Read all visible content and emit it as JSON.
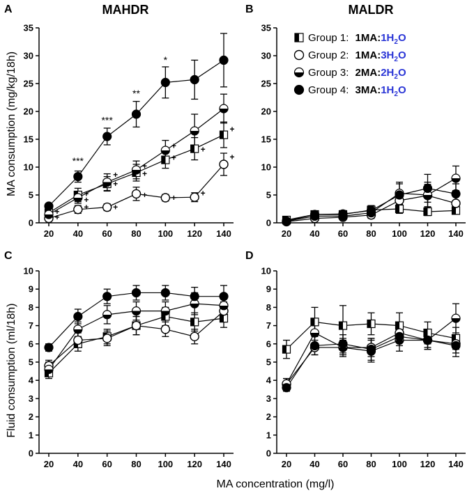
{
  "figure": {
    "shared_xlabel": "MA concentration (mg/l)"
  },
  "legend": {
    "items": [
      {
        "group": "Group 1:",
        "ratio_left": "1MA:",
        "ratio_right": "1H",
        "sub": "2",
        "o": "O",
        "marker": "square-half"
      },
      {
        "group": "Group 2:",
        "ratio_left": "1MA:",
        "ratio_right": "3H",
        "sub": "2",
        "o": "O",
        "marker": "circle-open"
      },
      {
        "group": "Group 3:",
        "ratio_left": "2MA:",
        "ratio_right": "2H",
        "sub": "2",
        "o": "O",
        "marker": "circle-half"
      },
      {
        "group": "Group 4:",
        "ratio_left": "3MA:",
        "ratio_right": "1H",
        "sub": "2",
        "o": "O",
        "marker": "circle-filled"
      }
    ],
    "ratio_color": "#2a35d6"
  },
  "chart_data": [
    {
      "panel": "A",
      "type": "line",
      "title": "MAHDR",
      "ylabel": "MA consumption (mg/kg/18h)",
      "xlabel": "",
      "x": [
        20,
        40,
        60,
        80,
        100,
        120,
        140
      ],
      "xticks": [
        "20",
        "40",
        "60",
        "80",
        "100",
        "120",
        "140"
      ],
      "ylim": [
        0,
        35
      ],
      "yticks": [
        "0",
        "5",
        "10",
        "15",
        "20",
        "25",
        "30",
        "35"
      ],
      "series": [
        {
          "name": "Group 1",
          "values": [
            1.8,
            5.0,
            7.0,
            9.0,
            11.3,
            13.3,
            15.8
          ],
          "errors": [
            0.5,
            1.2,
            1.3,
            1.5,
            1.5,
            2.0,
            2.3
          ]
        },
        {
          "name": "Group 2",
          "values": [
            0.8,
            2.4,
            2.8,
            5.2,
            4.5,
            4.6,
            10.5
          ],
          "errors": [
            0.4,
            0.7,
            0.6,
            1.2,
            0.6,
            0.8,
            2.0
          ]
        },
        {
          "name": "Group 3",
          "values": [
            1.5,
            4.5,
            7.3,
            9.5,
            13.0,
            16.5,
            20.5
          ],
          "errors": [
            0.5,
            1.0,
            1.5,
            1.6,
            1.8,
            3.0,
            2.6
          ]
        },
        {
          "name": "Group 4",
          "values": [
            3.0,
            8.3,
            15.5,
            19.5,
            25.2,
            25.7,
            29.2
          ],
          "errors": [
            0.4,
            1.0,
            1.5,
            2.3,
            2.8,
            3.5,
            4.8
          ]
        }
      ],
      "annotations": [
        {
          "x": 40,
          "y": 10.5,
          "text": "***"
        },
        {
          "x": 60,
          "y": 17.8,
          "text": "***"
        },
        {
          "x": 80,
          "y": 22.6,
          "text": "**"
        },
        {
          "x": 100,
          "y": 28.6,
          "text": "*"
        }
      ],
      "plus_marks": [
        {
          "x": 20,
          "y": 2.0,
          "text": "+"
        },
        {
          "x": 20,
          "y": 1.0,
          "text": "+"
        },
        {
          "x": 40,
          "y": 5.2,
          "text": "+"
        },
        {
          "x": 40,
          "y": 4.1,
          "text": "+"
        },
        {
          "x": 40,
          "y": 2.8,
          "text": "+"
        },
        {
          "x": 60,
          "y": 8.6,
          "text": "+"
        },
        {
          "x": 60,
          "y": 7.0,
          "text": "+"
        },
        {
          "x": 60,
          "y": 2.8,
          "text": "+"
        },
        {
          "x": 80,
          "y": 10.2,
          "text": "+"
        },
        {
          "x": 80,
          "y": 8.8,
          "text": "+"
        },
        {
          "x": 80,
          "y": 5.0,
          "text": "+"
        },
        {
          "x": 100,
          "y": 13.8,
          "text": "+"
        },
        {
          "x": 100,
          "y": 11.7,
          "text": "+"
        },
        {
          "x": 100,
          "y": 4.5,
          "text": "+"
        },
        {
          "x": 120,
          "y": 13.2,
          "text": "+"
        },
        {
          "x": 120,
          "y": 5.3,
          "text": "+"
        },
        {
          "x": 140,
          "y": 16.8,
          "text": "+"
        },
        {
          "x": 140,
          "y": 11.8,
          "text": "+"
        }
      ]
    },
    {
      "panel": "B",
      "type": "line",
      "title": "MALDR",
      "ylabel": "",
      "xlabel": "",
      "x": [
        20,
        40,
        60,
        80,
        100,
        120,
        140
      ],
      "xticks": [
        "20",
        "40",
        "60",
        "80",
        "100",
        "120",
        "140"
      ],
      "ylim": [
        0,
        35
      ],
      "yticks": [
        "0",
        "5",
        "10",
        "15",
        "20",
        "25",
        "30",
        "35"
      ],
      "series": [
        {
          "name": "Group 1",
          "values": [
            0.5,
            1.5,
            1.5,
            2.3,
            2.5,
            2.0,
            2.2
          ],
          "errors": [
            0.4,
            0.6,
            0.5,
            0.7,
            0.8,
            0.7,
            0.6
          ]
        },
        {
          "name": "Group 2",
          "values": [
            0.2,
            0.8,
            1.0,
            1.4,
            4.0,
            4.9,
            3.5
          ],
          "errors": [
            0.3,
            0.4,
            0.4,
            0.6,
            1.5,
            2.0,
            1.2
          ]
        },
        {
          "name": "Group 3",
          "values": [
            0.3,
            1.2,
            1.2,
            1.8,
            5.3,
            5.0,
            8.0
          ],
          "errors": [
            0.3,
            0.5,
            0.5,
            0.8,
            2.0,
            2.3,
            2.2
          ]
        },
        {
          "name": "Group 4",
          "values": [
            0.3,
            1.5,
            1.6,
            2.2,
            5.0,
            6.2,
            5.2
          ],
          "errors": [
            0.3,
            0.6,
            0.6,
            0.9,
            2.0,
            2.5,
            1.8
          ]
        }
      ]
    },
    {
      "panel": "C",
      "type": "line",
      "title": "",
      "ylabel": "Fluid consumption (ml/18h)",
      "xlabel": "",
      "x": [
        20,
        40,
        60,
        80,
        100,
        120,
        140
      ],
      "xticks": [
        "20",
        "40",
        "60",
        "80",
        "100",
        "120",
        "140"
      ],
      "ylim": [
        0,
        10
      ],
      "yticks": [
        "0",
        "1",
        "2",
        "3",
        "4",
        "5",
        "6",
        "7",
        "8",
        "9",
        "10"
      ],
      "series": [
        {
          "name": "Group 1",
          "values": [
            4.4,
            6.0,
            6.4,
            7.0,
            7.5,
            7.2,
            7.4
          ],
          "errors": [
            0.3,
            0.4,
            0.4,
            0.5,
            0.5,
            0.5,
            0.5
          ]
        },
        {
          "name": "Group 2",
          "values": [
            4.8,
            6.2,
            6.3,
            7.0,
            6.8,
            6.4,
            7.8
          ],
          "errors": [
            0.3,
            0.4,
            0.4,
            0.5,
            0.4,
            0.4,
            0.5
          ]
        },
        {
          "name": "Group 3",
          "values": [
            4.6,
            6.8,
            7.6,
            7.8,
            7.8,
            8.2,
            8.1
          ],
          "errors": [
            0.4,
            0.4,
            0.5,
            0.5,
            0.5,
            0.6,
            0.5
          ]
        },
        {
          "name": "Group 4",
          "values": [
            5.8,
            7.5,
            8.6,
            8.8,
            8.8,
            8.6,
            8.6
          ],
          "errors": [
            0.2,
            0.4,
            0.4,
            0.4,
            0.4,
            0.5,
            0.6
          ]
        }
      ]
    },
    {
      "panel": "D",
      "type": "line",
      "title": "",
      "ylabel": "",
      "xlabel": "",
      "x": [
        20,
        40,
        60,
        80,
        100,
        120,
        140
      ],
      "xticks": [
        "20",
        "40",
        "60",
        "80",
        "100",
        "120",
        "140"
      ],
      "ylim": [
        0,
        10
      ],
      "yticks": [
        "0",
        "1",
        "2",
        "3",
        "4",
        "5",
        "6",
        "7",
        "8",
        "9",
        "10"
      ],
      "series": [
        {
          "name": "Group 1",
          "values": [
            5.7,
            7.2,
            7.0,
            7.1,
            7.0,
            6.6,
            6.3
          ],
          "errors": [
            0.5,
            0.8,
            1.1,
            0.6,
            0.7,
            0.6,
            0.6
          ]
        },
        {
          "name": "Group 2",
          "values": [
            3.8,
            5.8,
            5.8,
            5.8,
            6.6,
            6.2,
            6.0
          ],
          "errors": [
            0.3,
            0.4,
            0.4,
            0.5,
            0.5,
            0.4,
            0.5
          ]
        },
        {
          "name": "Group 3",
          "values": [
            3.8,
            6.6,
            5.8,
            5.6,
            6.2,
            6.2,
            7.4
          ],
          "errors": [
            0.3,
            0.6,
            0.5,
            0.6,
            0.6,
            0.5,
            0.8
          ]
        },
        {
          "name": "Group 4",
          "values": [
            3.6,
            5.9,
            6.0,
            5.7,
            6.4,
            6.2,
            5.9
          ],
          "errors": [
            0.2,
            0.5,
            0.5,
            0.6,
            0.5,
            0.5,
            0.6
          ]
        }
      ]
    }
  ]
}
